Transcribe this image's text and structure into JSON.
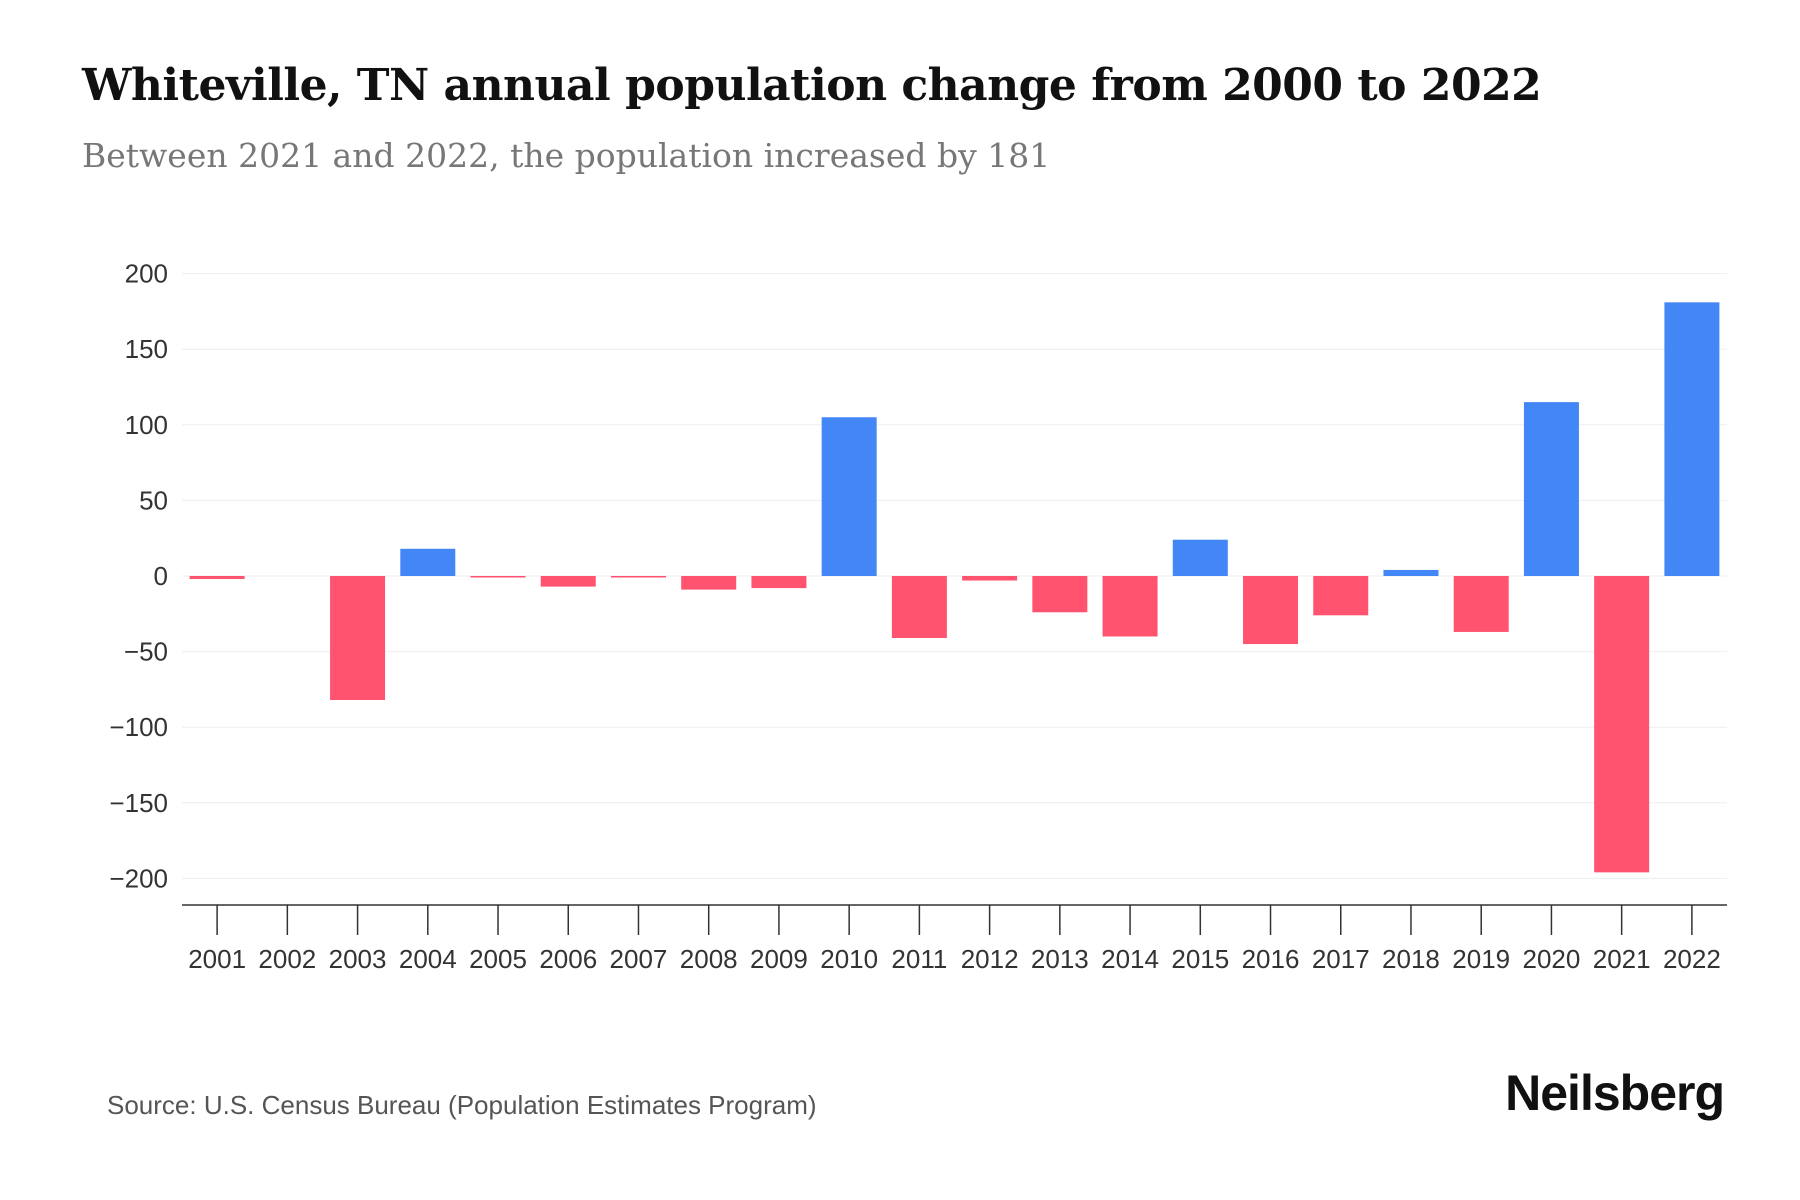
{
  "chart_data": {
    "type": "bar",
    "title": "Whiteville, TN annual population change from 2000 to 2022",
    "subtitle": "Between 2021 and 2022, the population increased by 181",
    "categories": [
      "2001",
      "2002",
      "2003",
      "2004",
      "2005",
      "2006",
      "2007",
      "2008",
      "2009",
      "2010",
      "2011",
      "2012",
      "2013",
      "2014",
      "2015",
      "2016",
      "2017",
      "2018",
      "2019",
      "2020",
      "2021",
      "2022"
    ],
    "values": [
      -2,
      0,
      -82,
      18,
      -1,
      -7,
      -1,
      -9,
      -8,
      105,
      -41,
      -3,
      -24,
      -40,
      24,
      -45,
      -26,
      4,
      -37,
      115,
      -196,
      181
    ],
    "yticks": [
      200,
      150,
      100,
      50,
      0,
      -50,
      -100,
      -150,
      -200
    ],
    "ytick_labels": [
      "200",
      "150",
      "100",
      "50",
      "0",
      "−50",
      "−100",
      "−150",
      "−200"
    ],
    "ylim": [
      -218,
      200
    ],
    "xlabel": "",
    "ylabel": "",
    "grid": true,
    "colors": {
      "positive": "#4287f5",
      "negative": "#ff5370"
    }
  },
  "footer": {
    "source": "Source: U.S. Census Bureau (Population Estimates Program)",
    "logo": "Neilsberg"
  }
}
